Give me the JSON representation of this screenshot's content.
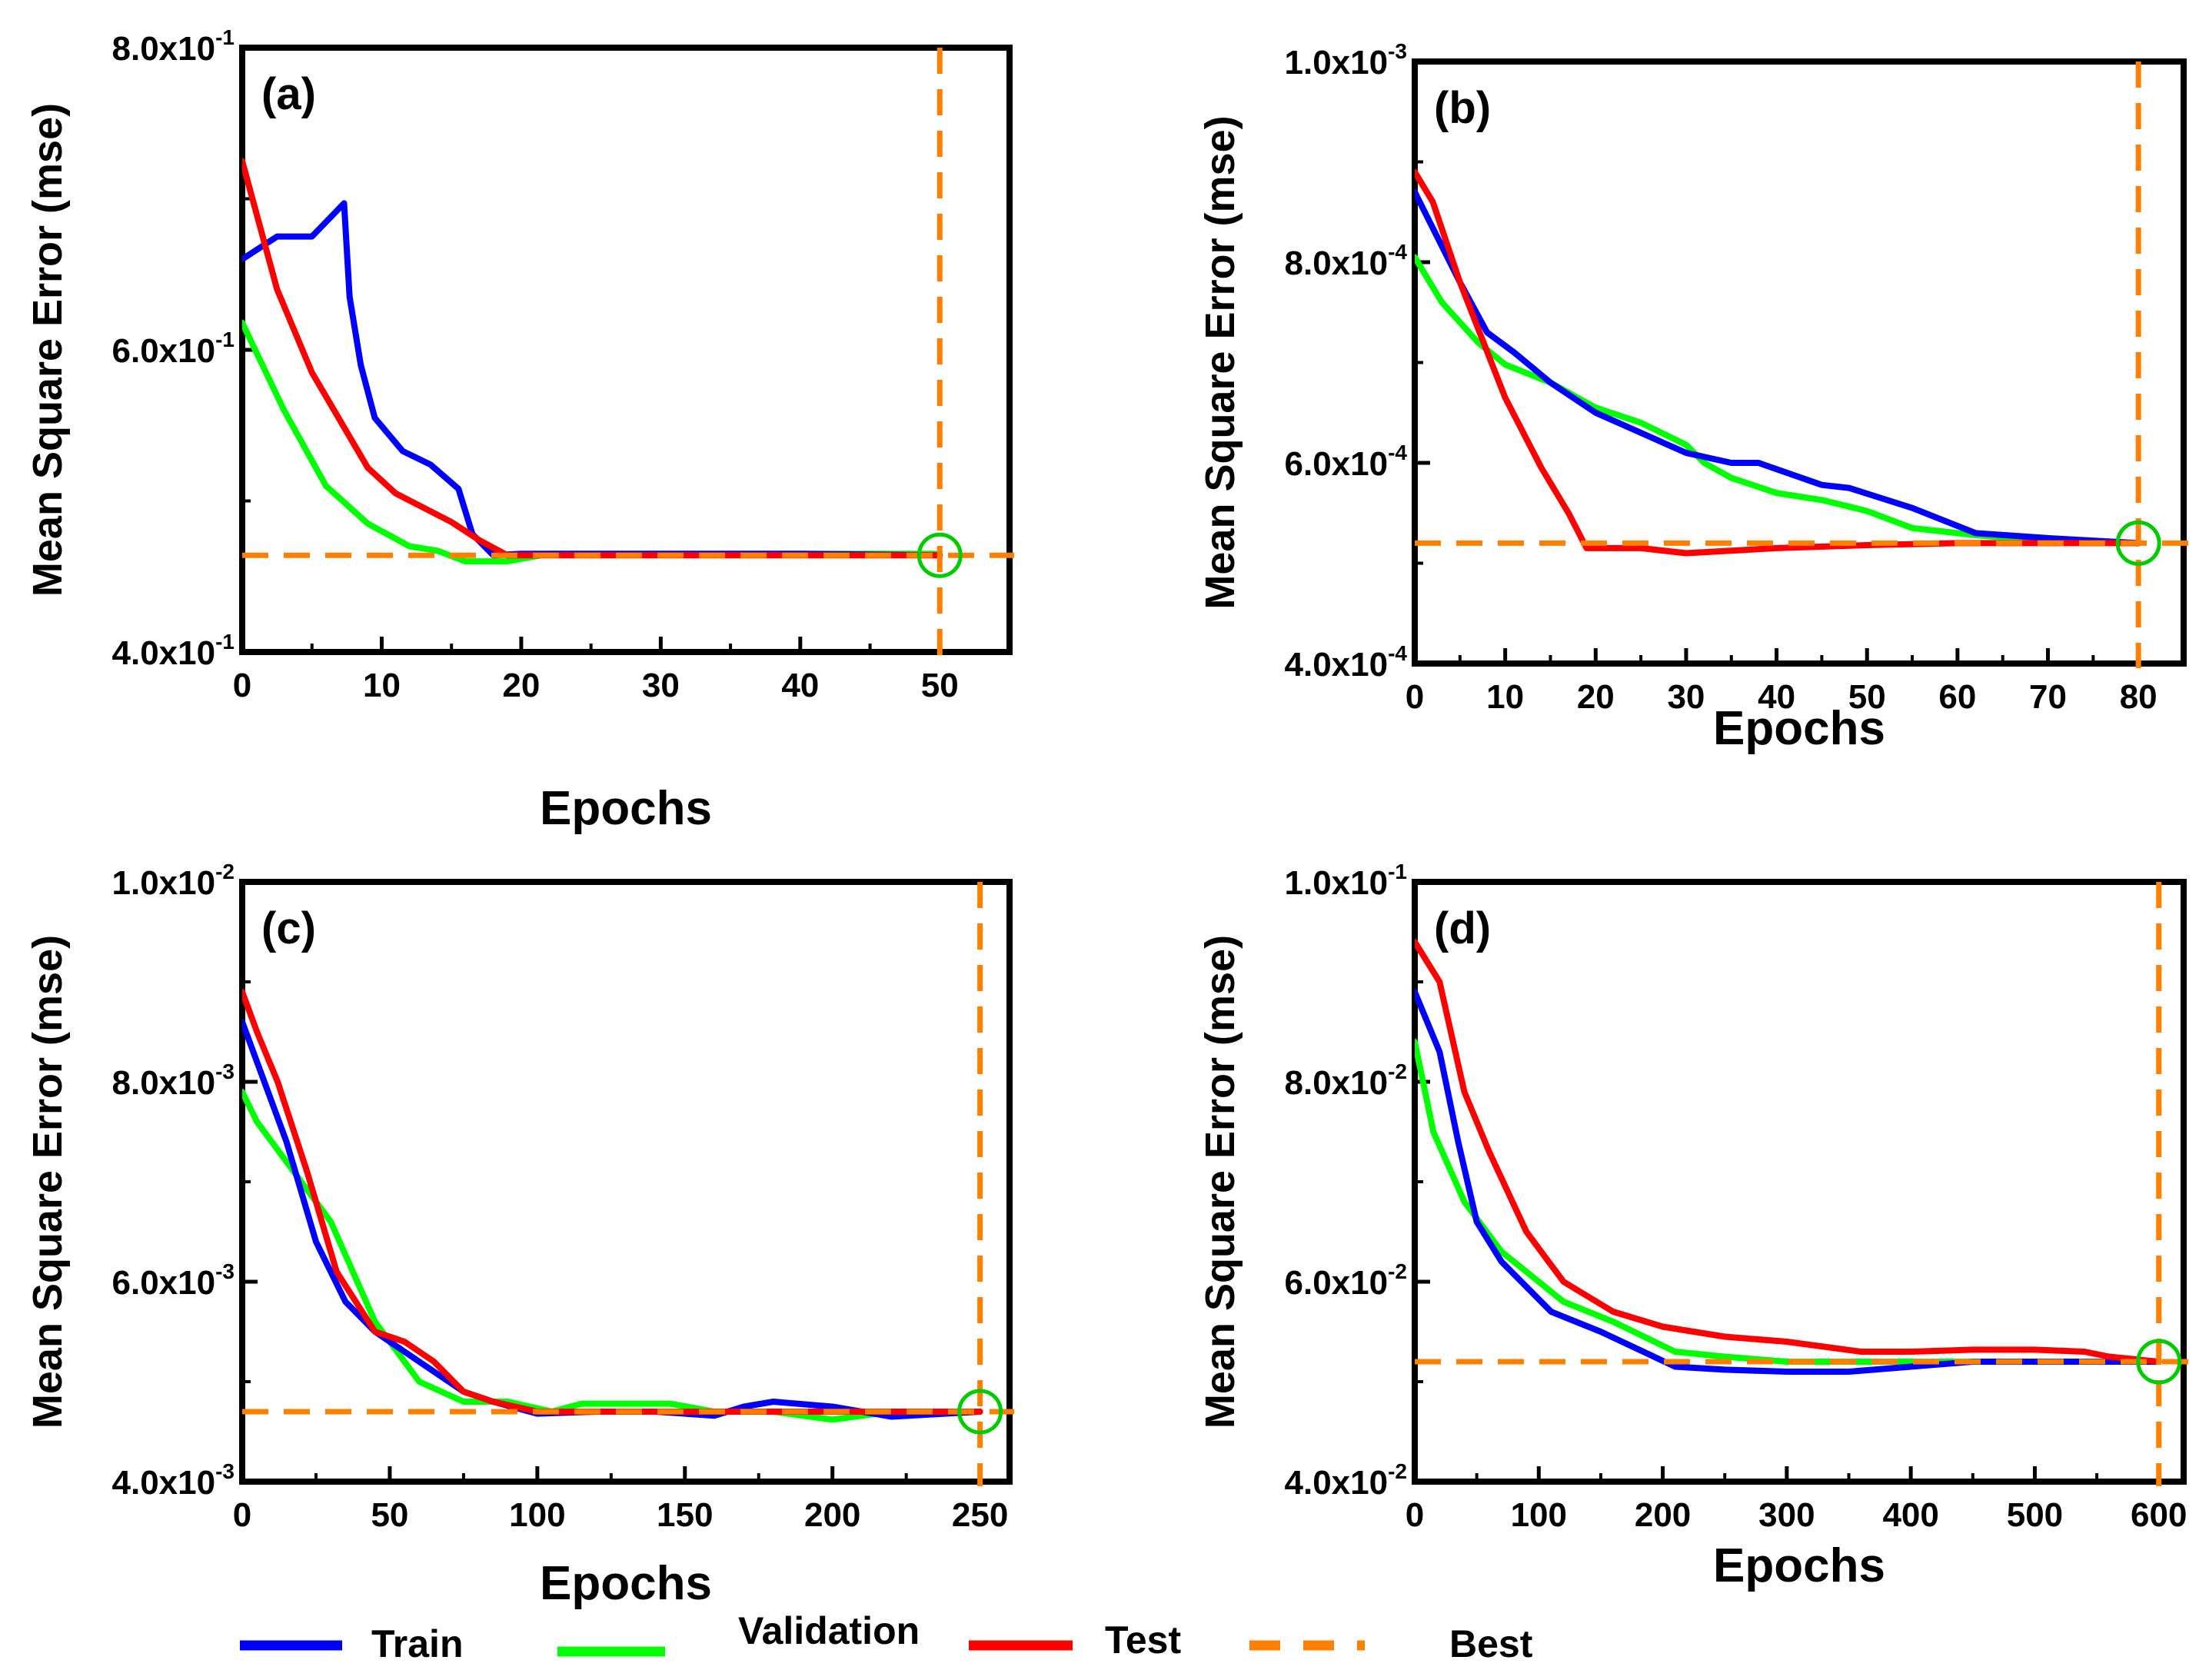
{
  "colors": {
    "train": "#0000ff",
    "validation": "#00ff00",
    "test": "#ff0000",
    "best": "#ff8000",
    "circle": "#00cc00"
  },
  "legend": [
    {
      "key": "train",
      "label": "Train"
    },
    {
      "key": "validation",
      "label": "Validation"
    },
    {
      "key": "test",
      "label": "Test"
    },
    {
      "key": "best",
      "label": "Best"
    }
  ],
  "chart_data": [
    {
      "type": "line",
      "panel_label": "(a)",
      "xlabel": "Epochs",
      "ylabel": "Mean Square Error (mse)",
      "xlim": [
        0,
        55
      ],
      "ylim": [
        0.4,
        0.8
      ],
      "xticks": [
        0,
        10,
        20,
        30,
        40,
        50
      ],
      "yticks": [
        {
          "value": 0.4,
          "mantissa": "4.0x10",
          "exp": "-1"
        },
        {
          "value": 0.6,
          "mantissa": "6.0x10",
          "exp": "-1"
        },
        {
          "value": 0.8,
          "mantissa": "8.0x10",
          "exp": "-1"
        }
      ],
      "best_epoch": 50,
      "best_value": 0.464,
      "series": [
        {
          "name": "Train",
          "key": "train",
          "x": [
            0,
            2.5,
            5,
            7.3,
            7.7,
            8.5,
            9.5,
            11.5,
            13.5,
            15.5,
            16.5,
            18,
            20,
            30,
            40,
            50
          ],
          "y": [
            0.66,
            0.675,
            0.675,
            0.697,
            0.635,
            0.59,
            0.555,
            0.533,
            0.524,
            0.508,
            0.478,
            0.464,
            0.465,
            0.465,
            0.465,
            0.464
          ]
        },
        {
          "name": "Validation",
          "key": "validation",
          "x": [
            0,
            3,
            6,
            9,
            12,
            14,
            16,
            19,
            22,
            30,
            40,
            50
          ],
          "y": [
            0.618,
            0.56,
            0.51,
            0.485,
            0.47,
            0.467,
            0.46,
            0.46,
            0.465,
            0.465,
            0.465,
            0.465
          ]
        },
        {
          "name": "Test",
          "key": "test",
          "x": [
            0,
            2.5,
            5,
            9,
            11,
            15,
            17,
            19,
            30,
            40,
            50
          ],
          "y": [
            0.725,
            0.64,
            0.585,
            0.522,
            0.505,
            0.486,
            0.474,
            0.464,
            0.464,
            0.464,
            0.464
          ]
        }
      ]
    },
    {
      "type": "line",
      "panel_label": "(b)",
      "xlabel": "Epochs",
      "ylabel": "Mean Square Error (mse)",
      "xlim": [
        0,
        85
      ],
      "ylim": [
        0.0004,
        0.001
      ],
      "xticks": [
        0,
        10,
        20,
        30,
        40,
        50,
        60,
        70,
        80
      ],
      "yticks": [
        {
          "value": 0.0004,
          "mantissa": "4.0x10",
          "exp": "-4"
        },
        {
          "value": 0.0006,
          "mantissa": "6.0x10",
          "exp": "-4"
        },
        {
          "value": 0.0008,
          "mantissa": "8.0x10",
          "exp": "-4"
        },
        {
          "value": 0.001,
          "mantissa": "1.0x10",
          "exp": "-3"
        }
      ],
      "best_epoch": 80,
      "best_value": 0.00052,
      "series": [
        {
          "name": "Train",
          "key": "train",
          "x": [
            0,
            5,
            8,
            11,
            15,
            20,
            25,
            30,
            35,
            38,
            45,
            48,
            55,
            62,
            70,
            80
          ],
          "y": [
            0.00087,
            0.00078,
            0.00073,
            0.00071,
            0.00068,
            0.00065,
            0.00063,
            0.00061,
            0.0006,
            0.0006,
            0.000578,
            0.000575,
            0.000555,
            0.00053,
            0.000525,
            0.00052
          ]
        },
        {
          "name": "Validation",
          "key": "validation",
          "x": [
            0,
            3,
            7,
            10,
            15,
            20,
            25,
            30,
            32,
            35,
            40,
            45,
            50,
            55,
            62,
            70,
            80
          ],
          "y": [
            0.000805,
            0.00076,
            0.00072,
            0.000698,
            0.00068,
            0.000655,
            0.00064,
            0.000618,
            0.0006,
            0.000585,
            0.00057,
            0.000563,
            0.000552,
            0.000535,
            0.000528,
            0.000522,
            0.00052
          ]
        },
        {
          "name": "Test",
          "key": "test",
          "x": [
            0,
            2,
            5,
            10,
            14,
            17,
            19,
            25,
            30,
            40,
            50,
            60,
            70,
            80
          ],
          "y": [
            0.00089,
            0.00086,
            0.00078,
            0.000665,
            0.000595,
            0.00055,
            0.000515,
            0.000515,
            0.00051,
            0.000515,
            0.000518,
            0.00052,
            0.00052,
            0.00052
          ]
        }
      ]
    },
    {
      "type": "line",
      "panel_label": "(c)",
      "xlabel": "Epochs",
      "ylabel": "Mean Square Error (mse)",
      "xlim": [
        0,
        260
      ],
      "ylim": [
        0.004,
        0.01
      ],
      "xticks": [
        0,
        50,
        100,
        150,
        200,
        250
      ],
      "yticks": [
        {
          "value": 0.004,
          "mantissa": "4.0x10",
          "exp": "-3"
        },
        {
          "value": 0.006,
          "mantissa": "6.0x10",
          "exp": "-3"
        },
        {
          "value": 0.008,
          "mantissa": "8.0x10",
          "exp": "-3"
        },
        {
          "value": 0.01,
          "mantissa": "1.0x10",
          "exp": "-2"
        }
      ],
      "best_epoch": 250,
      "best_value": 0.0047,
      "series": [
        {
          "name": "Train",
          "key": "train",
          "x": [
            0,
            5,
            15,
            25,
            35,
            45,
            55,
            65,
            75,
            85,
            100,
            120,
            140,
            160,
            170,
            180,
            200,
            220,
            250
          ],
          "y": [
            0.0086,
            0.0082,
            0.0074,
            0.0064,
            0.0058,
            0.0055,
            0.0053,
            0.0051,
            0.0049,
            0.0048,
            0.00468,
            0.0047,
            0.0047,
            0.00466,
            0.00475,
            0.0048,
            0.00475,
            0.00465,
            0.0047
          ]
        },
        {
          "name": "Validation",
          "key": "validation",
          "x": [
            0,
            5,
            15,
            30,
            45,
            60,
            75,
            90,
            105,
            115,
            130,
            145,
            160,
            180,
            200,
            215,
            230,
            250
          ],
          "y": [
            0.0079,
            0.0076,
            0.0072,
            0.0066,
            0.0056,
            0.005,
            0.0048,
            0.0048,
            0.0047,
            0.00478,
            0.00478,
            0.00478,
            0.0047,
            0.0047,
            0.00462,
            0.00468,
            0.0047,
            0.0047
          ]
        },
        {
          "name": "Test",
          "key": "test",
          "x": [
            0,
            5,
            12,
            22,
            32,
            45,
            55,
            65,
            75,
            85,
            100,
            120,
            140,
            160,
            180,
            200,
            220,
            250
          ],
          "y": [
            0.0089,
            0.0085,
            0.008,
            0.0071,
            0.0061,
            0.0055,
            0.0054,
            0.0052,
            0.0049,
            0.0048,
            0.0047,
            0.0047,
            0.0047,
            0.0047,
            0.0047,
            0.0047,
            0.0047,
            0.0047
          ]
        }
      ]
    },
    {
      "type": "line",
      "panel_label": "(d)",
      "xlabel": "Epochs",
      "ylabel": "Mean Square Error (mse)",
      "xlim": [
        0,
        620
      ],
      "ylim": [
        0.04,
        0.1
      ],
      "xticks": [
        0,
        100,
        200,
        300,
        400,
        500,
        600
      ],
      "yticks": [
        {
          "value": 0.04,
          "mantissa": "4.0x10",
          "exp": "-2"
        },
        {
          "value": 0.06,
          "mantissa": "6.0x10",
          "exp": "-2"
        },
        {
          "value": 0.08,
          "mantissa": "8.0x10",
          "exp": "-2"
        },
        {
          "value": 0.1,
          "mantissa": "1.0x10",
          "exp": "-1"
        }
      ],
      "best_epoch": 600,
      "best_value": 0.052,
      "series": [
        {
          "name": "Train",
          "key": "train",
          "x": [
            0,
            20,
            35,
            50,
            70,
            110,
            150,
            210,
            250,
            300,
            350,
            400,
            450,
            500,
            550,
            600
          ],
          "y": [
            0.089,
            0.083,
            0.074,
            0.066,
            0.062,
            0.057,
            0.055,
            0.0515,
            0.0512,
            0.051,
            0.051,
            0.0515,
            0.052,
            0.052,
            0.052,
            0.052
          ]
        },
        {
          "name": "Validation",
          "key": "validation",
          "x": [
            0,
            15,
            40,
            70,
            120,
            160,
            210,
            250,
            300,
            350,
            400,
            450,
            500,
            550,
            600
          ],
          "y": [
            0.084,
            0.075,
            0.068,
            0.063,
            0.058,
            0.056,
            0.053,
            0.0525,
            0.052,
            0.052,
            0.052,
            0.052,
            0.052,
            0.052,
            0.052
          ]
        },
        {
          "name": "Test",
          "key": "test",
          "x": [
            0,
            20,
            40,
            60,
            90,
            120,
            160,
            200,
            250,
            300,
            360,
            400,
            450,
            500,
            540,
            560,
            600
          ],
          "y": [
            0.094,
            0.09,
            0.079,
            0.073,
            0.065,
            0.06,
            0.057,
            0.0555,
            0.0545,
            0.054,
            0.053,
            0.053,
            0.0532,
            0.0532,
            0.053,
            0.0525,
            0.052
          ]
        }
      ]
    }
  ]
}
